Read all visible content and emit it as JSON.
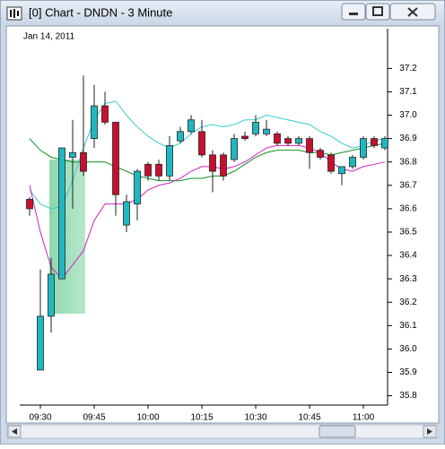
{
  "window": {
    "title": "[0]  Chart - DNDN - 3 Minute"
  },
  "chart_data": {
    "type": "candlestick",
    "date_label": "Jan 14, 2011",
    "categories": [
      null,
      "09:30",
      null,
      null,
      null,
      null,
      "09:45",
      null,
      null,
      null,
      null,
      "10:00",
      null,
      null,
      null,
      null,
      "10:15",
      null,
      null,
      null,
      null,
      "10:30",
      null,
      null,
      null,
      null,
      "10:45",
      null,
      null,
      null,
      null,
      "11:00",
      null,
      null
    ],
    "open": [
      36.64,
      35.91,
      36.14,
      36.3,
      36.82,
      36.84,
      36.9,
      37.04,
      36.97,
      36.53,
      36.62,
      36.79,
      36.79,
      36.74,
      36.89,
      36.93,
      36.93,
      36.83,
      36.83,
      36.81,
      36.91,
      36.92,
      36.92,
      36.92,
      36.9,
      36.88,
      36.9,
      36.85,
      36.83,
      36.75,
      36.78,
      36.82,
      36.9,
      36.86
    ],
    "high": [
      36.65,
      36.34,
      36.39,
      36.86,
      36.98,
      37.17,
      37.13,
      37.1,
      36.97,
      36.66,
      36.77,
      36.8,
      36.81,
      36.91,
      36.95,
      37.0,
      36.98,
      36.85,
      36.84,
      36.92,
      36.93,
      37.0,
      36.98,
      36.93,
      36.91,
      36.91,
      36.91,
      36.86,
      36.84,
      36.78,
      36.83,
      36.91,
      36.91,
      36.91
    ],
    "low": [
      36.57,
      35.91,
      36.07,
      36.3,
      36.6,
      36.74,
      36.86,
      36.96,
      36.57,
      36.5,
      36.55,
      36.72,
      36.72,
      36.72,
      36.88,
      36.92,
      36.82,
      36.67,
      36.72,
      36.8,
      36.89,
      36.91,
      36.91,
      36.87,
      36.87,
      36.87,
      36.77,
      36.81,
      36.75,
      36.7,
      36.77,
      36.81,
      36.86,
      36.85
    ],
    "close": [
      36.6,
      36.14,
      36.32,
      36.86,
      36.84,
      36.76,
      37.04,
      36.97,
      36.66,
      36.63,
      36.76,
      36.74,
      36.74,
      36.87,
      36.93,
      36.98,
      36.83,
      36.76,
      36.74,
      36.9,
      36.9,
      36.97,
      36.94,
      36.88,
      36.88,
      36.9,
      36.84,
      36.82,
      36.76,
      36.78,
      36.82,
      36.9,
      36.87,
      36.9
    ],
    "up_color": "#20b8c0",
    "down_color": "#c8102e",
    "overlays": [
      {
        "color": "#33cccc",
        "values": [
          36.68,
          36.62,
          36.6,
          36.61,
          36.72,
          36.86,
          36.98,
          37.05,
          37.06,
          37.0,
          36.95,
          36.91,
          36.88,
          36.86,
          36.88,
          36.92,
          36.95,
          36.96,
          36.95,
          36.96,
          36.98,
          36.98,
          37.0,
          36.99,
          36.98,
          36.97,
          36.96,
          36.93,
          36.91,
          36.88,
          36.86,
          36.87,
          36.89,
          36.9
        ]
      },
      {
        "color": "#109020",
        "values": [
          36.9,
          36.85,
          36.82,
          36.81,
          36.8,
          36.8,
          36.8,
          36.8,
          36.78,
          36.76,
          36.74,
          36.73,
          36.72,
          36.72,
          36.72,
          36.73,
          36.73,
          36.74,
          36.74,
          36.76,
          36.79,
          36.82,
          36.84,
          36.85,
          36.85,
          36.85,
          36.84,
          36.84,
          36.83,
          36.84,
          36.85,
          36.86,
          36.87,
          36.88
        ]
      },
      {
        "color": "#d020c0",
        "values": [
          36.7,
          36.5,
          36.35,
          36.3,
          36.36,
          36.42,
          36.55,
          36.62,
          36.62,
          36.62,
          36.64,
          36.68,
          36.7,
          36.71,
          36.73,
          36.76,
          36.78,
          36.78,
          36.77,
          36.78,
          36.8,
          36.83,
          36.86,
          36.87,
          36.87,
          36.87,
          36.86,
          36.84,
          36.8,
          36.77,
          36.76,
          36.78,
          36.79,
          36.8
        ]
      }
    ],
    "ylim": [
      35.76,
      37.37
    ],
    "yticks": [
      35.8,
      35.9,
      {
        "value": 36,
        "label": "36.0"
      },
      36.1,
      36.2,
      36.3,
      36.4,
      36.5,
      36.6,
      36.7,
      36.8,
      36.9,
      {
        "value": 37,
        "label": "37.0"
      },
      37.1,
      37.2
    ]
  }
}
